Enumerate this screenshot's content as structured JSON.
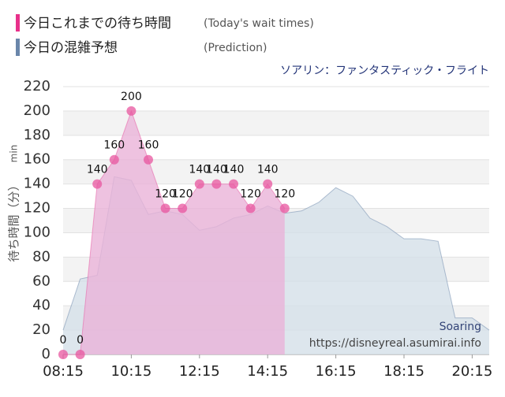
{
  "chart_data": {
    "type": "area",
    "title": "ソアリン：ファンタスティック・フライト",
    "ylabel": "待ち時間（分）",
    "yunit": "min",
    "watermark": [
      "Soaring",
      "https://disneyreal.asumirai.info"
    ],
    "xlim": [
      "08:15",
      "20:45"
    ],
    "xticks": [
      "08:15",
      "10:15",
      "12:15",
      "14:15",
      "16:15",
      "18:15",
      "20:15"
    ],
    "ylim": [
      0,
      220
    ],
    "yticks": [
      0,
      20,
      40,
      60,
      80,
      100,
      120,
      140,
      160,
      180,
      200,
      220
    ],
    "grid": true,
    "series": [
      {
        "name": "今日の混雑予想",
        "subname": "(Prediction)",
        "color": "#6a86aa",
        "fill": "#d5e0e8",
        "x": [
          "08:15",
          "08:45",
          "09:15",
          "09:45",
          "10:15",
          "10:45",
          "11:15",
          "11:45",
          "12:15",
          "12:45",
          "13:15",
          "13:45",
          "14:15",
          "14:45",
          "15:15",
          "15:45",
          "16:15",
          "16:45",
          "17:15",
          "17:45",
          "18:15",
          "18:45",
          "19:15",
          "19:45",
          "20:15",
          "20:45"
        ],
        "values": [
          20,
          62,
          65,
          146,
          143,
          115,
          118,
          115,
          102,
          105,
          112,
          115,
          122,
          116,
          118,
          125,
          137,
          130,
          112,
          105,
          95,
          95,
          93,
          30,
          30,
          20
        ]
      },
      {
        "name": "今日これまでの待ち時間",
        "subname": "(Today's wait times)",
        "color": "#e8559f",
        "fill": "#eab3d8",
        "markers": true,
        "value_labels_shown": true,
        "x": [
          "08:15",
          "08:45",
          "09:15",
          "09:45",
          "10:15",
          "10:45",
          "11:15",
          "11:45",
          "12:15",
          "12:45",
          "13:15",
          "13:45",
          "14:15",
          "14:45"
        ],
        "values": [
          0,
          0,
          140,
          160,
          200,
          160,
          120,
          120,
          140,
          140,
          140,
          120,
          140,
          120
        ]
      }
    ]
  }
}
